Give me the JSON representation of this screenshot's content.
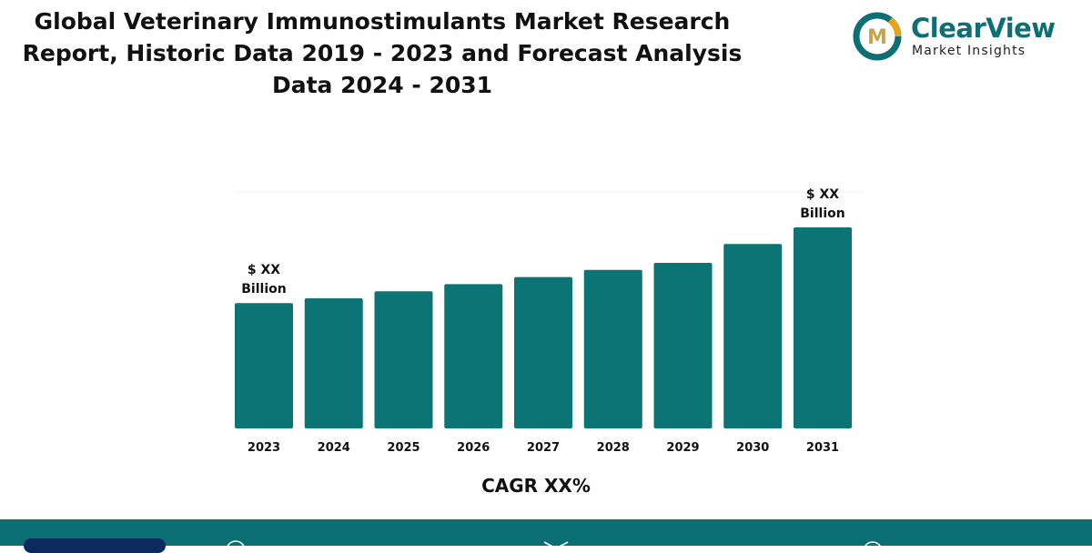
{
  "header": {
    "title": "Global Veterinary Immunostimulants Market Research Report, Historic Data 2019 - 2023 and Forecast Analysis Data 2024 - 2031"
  },
  "logo": {
    "brand_name": "ClearView",
    "tagline": "Market Insights",
    "monogram": "M"
  },
  "colors": {
    "bar": "#0c7474",
    "brand": "#0c6f73",
    "footer": "#0a6e72",
    "footer_pill": "#0c2a5e"
  },
  "chart_data": {
    "type": "bar",
    "categories": [
      "2023",
      "2024",
      "2025",
      "2026",
      "2027",
      "2028",
      "2029",
      "2030",
      "2031"
    ],
    "values": [
      53,
      55,
      58,
      61,
      64,
      67,
      70,
      78,
      85
    ],
    "ylim": [
      0,
      100
    ],
    "grid": true,
    "data_labels": {
      "2023": "$ XX\nBillion",
      "2031": "$ XX\nBillion"
    },
    "xlabel": "CAGR XX%"
  },
  "footer": {
    "icons": [
      "globe-icon",
      "mail-icon",
      "phone-icon"
    ]
  }
}
